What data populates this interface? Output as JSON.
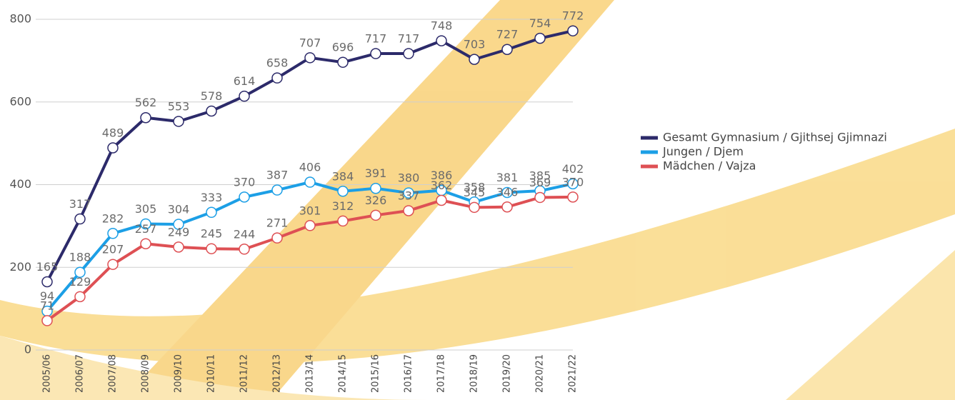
{
  "chart_data": {
    "type": "line",
    "categories": [
      "2005/06",
      "2006/07",
      "2007/08",
      "2008/09",
      "2009/10",
      "2010/11",
      "2011/12",
      "2012/13",
      "2013/14",
      "2014/15",
      "2015/16",
      "2016/17",
      "2017/18",
      "2018/19",
      "2019/20",
      "2020/21",
      "2021/22"
    ],
    "series": [
      {
        "name": "Gesamt Gymnasium / Gjithsej Gjimnazi",
        "color": "#2c2a6a",
        "values": [
          165,
          317,
          489,
          562,
          553,
          578,
          614,
          658,
          707,
          696,
          717,
          717,
          748,
          703,
          727,
          754,
          772
        ]
      },
      {
        "name": "Jungen / Djem",
        "color": "#1c9fe6",
        "values": [
          94,
          188,
          282,
          305,
          304,
          333,
          370,
          387,
          406,
          384,
          391,
          380,
          386,
          358,
          381,
          385,
          402
        ]
      },
      {
        "name": "Mädchen / Vajza",
        "color": "#de5054",
        "values": [
          71,
          129,
          207,
          257,
          249,
          245,
          244,
          271,
          301,
          312,
          326,
          337,
          362,
          345,
          346,
          369,
          370
        ]
      }
    ],
    "ylim": [
      0,
      800
    ],
    "yticks": [
      0,
      200,
      400,
      600,
      800
    ],
    "grid": true,
    "legend": "right"
  }
}
